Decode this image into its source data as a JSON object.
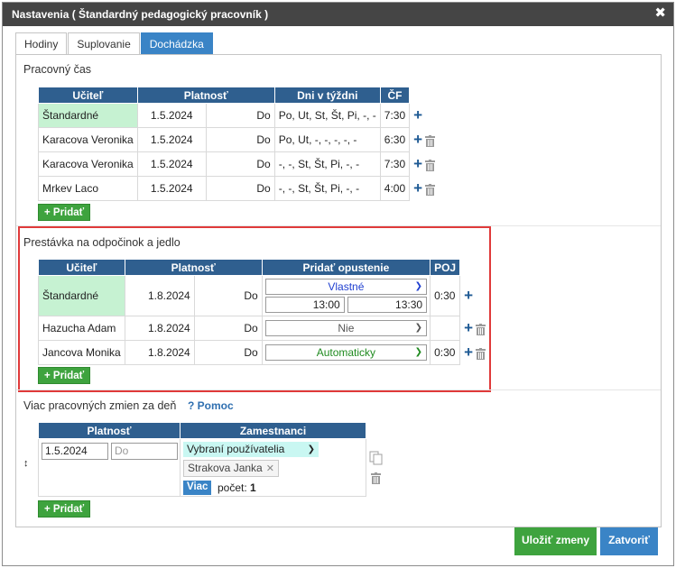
{
  "dialog": {
    "title": "Nastavenia ( Štandardný pedagogický pracovník )",
    "close_glyph": "✖"
  },
  "tabs": [
    {
      "label": "Hodiny"
    },
    {
      "label": "Suplovanie"
    },
    {
      "label": "Dochádzka",
      "active": true
    }
  ],
  "work_time": {
    "title": "Pracovný čas",
    "headers": [
      "Učiteľ",
      "Platnosť",
      "Dni v týždni",
      "ČF"
    ],
    "rows": [
      {
        "teacher": "Štandardné",
        "from": "1.5.2024",
        "to_label": "Do",
        "days": "Po, Ut, St, Št, Pi, -, -",
        "cf": "7:30",
        "standard": true
      },
      {
        "teacher": "Karacova Veronika",
        "from": "1.5.2024",
        "to_label": "Do",
        "days": "Po, Ut, -, -, -, -, -",
        "cf": "6:30"
      },
      {
        "teacher": "Karacova Veronika",
        "from": "1.5.2024",
        "to_label": "Do",
        "days": "-, -, St, Št, Pi, -, -",
        "cf": "7:30"
      },
      {
        "teacher": "Mrkev Laco",
        "from": "1.5.2024",
        "to_label": "Do",
        "days": "-, -, St, Št, Pi, -, -",
        "cf": "4:00"
      }
    ],
    "add_label": "+ Pridať"
  },
  "break": {
    "title": "Prestávka na odpočinok a jedlo",
    "headers": [
      "Učiteľ",
      "Platnosť",
      "Pridať opustenie",
      "POJ"
    ],
    "rows": [
      {
        "teacher": "Štandardné",
        "from": "1.8.2024",
        "to_label": "Do",
        "option": "Vlastné",
        "time_from": "13:00",
        "time_to": "13:30",
        "poj": "0:30",
        "standard": true
      },
      {
        "teacher": "Hazucha Adam",
        "from": "1.8.2024",
        "to_label": "Do",
        "option": "Nie",
        "poj": ""
      },
      {
        "teacher": "Jancova Monika",
        "from": "1.8.2024",
        "to_label": "Do",
        "option": "Automaticky",
        "poj": "0:30"
      }
    ],
    "add_label": "+ Pridať"
  },
  "shifts": {
    "title": "Viac pracovných zmien za deň",
    "help_label": "? Pomoc",
    "headers": [
      "Platnosť",
      "Zamestnanci"
    ],
    "row": {
      "from": "1.5.2024",
      "to_placeholder": "Do",
      "users_option": "Vybraní používatelia",
      "chip": "Strakova Janka",
      "more_label": "Viac",
      "count_label": "počet:",
      "count": "1"
    },
    "add_label": "+ Pridať"
  },
  "footer": {
    "save_label": "Uložiť zmeny",
    "close_label": "Zatvoriť"
  },
  "colors": {
    "title_bg": "#454545",
    "header_bg": "#2f5f8f",
    "accent_blue": "#3a84c6",
    "green": "#3ea33e",
    "standard_row": "#c6f2d2",
    "highlight_border": "#e03a3a"
  }
}
